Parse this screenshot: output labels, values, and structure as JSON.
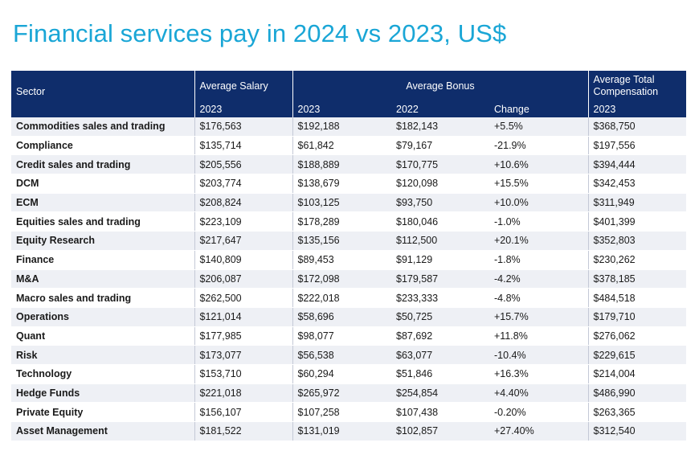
{
  "title": "Financial services pay in 2024 vs 2023, US$",
  "header": {
    "sector": "Sector",
    "avg_salary": "Average Salary",
    "avg_bonus": "Average Bonus",
    "avg_total": "Average Total Compensation",
    "year_salary": "2023",
    "year_bonus_2023": "2023",
    "year_bonus_2022": "2022",
    "change": "Change",
    "year_total": "2023"
  },
  "rows": [
    {
      "sector": "Commodities sales and trading",
      "salary": "$176,563",
      "bonus_2023": "$192,188",
      "bonus_2022": "$182,143",
      "change": "+5.5%",
      "total": "$368,750"
    },
    {
      "sector": "Compliance",
      "salary": "$135,714",
      "bonus_2023": "$61,842",
      "bonus_2022": "$79,167",
      "change": "-21.9%",
      "total": "$197,556"
    },
    {
      "sector": "Credit sales and trading",
      "salary": "$205,556",
      "bonus_2023": "$188,889",
      "bonus_2022": "$170,775",
      "change": "+10.6%",
      "total": "$394,444"
    },
    {
      "sector": "DCM",
      "salary": "$203,774",
      "bonus_2023": "$138,679",
      "bonus_2022": "$120,098",
      "change": "+15.5%",
      "total": "$342,453"
    },
    {
      "sector": "ECM",
      "salary": "$208,824",
      "bonus_2023": "$103,125",
      "bonus_2022": "$93,750",
      "change": "+10.0%",
      "total": "$311,949"
    },
    {
      "sector": "Equities sales and trading",
      "salary": "$223,109",
      "bonus_2023": "$178,289",
      "bonus_2022": "$180,046",
      "change": "-1.0%",
      "total": "$401,399"
    },
    {
      "sector": "Equity Research",
      "salary": "$217,647",
      "bonus_2023": "$135,156",
      "bonus_2022": "$112,500",
      "change": "+20.1%",
      "total": "$352,803"
    },
    {
      "sector": "Finance",
      "salary": "$140,809",
      "bonus_2023": "$89,453",
      "bonus_2022": "$91,129",
      "change": "-1.8%",
      "total": "$230,262"
    },
    {
      "sector": "M&A",
      "salary": "$206,087",
      "bonus_2023": "$172,098",
      "bonus_2022": "$179,587",
      "change": "-4.2%",
      "total": "$378,185"
    },
    {
      "sector": "Macro sales and trading",
      "salary": "$262,500",
      "bonus_2023": "$222,018",
      "bonus_2022": "$233,333",
      "change": "-4.8%",
      "total": "$484,518"
    },
    {
      "sector": "Operations",
      "salary": "$121,014",
      "bonus_2023": "$58,696",
      "bonus_2022": "$50,725",
      "change": "+15.7%",
      "total": "$179,710"
    },
    {
      "sector": "Quant",
      "salary": "$177,985",
      "bonus_2023": "$98,077",
      "bonus_2022": "$87,692",
      "change": "+11.8%",
      "total": "$276,062"
    },
    {
      "sector": "Risk",
      "salary": "$173,077",
      "bonus_2023": "$56,538",
      "bonus_2022": "$63,077",
      "change": "-10.4%",
      "total": "$229,615"
    },
    {
      "sector": "Technology",
      "salary": "$153,710",
      "bonus_2023": "$60,294",
      "bonus_2022": "$51,846",
      "change": "+16.3%",
      "total": "$214,004"
    },
    {
      "sector": "Hedge Funds",
      "salary": "$221,018",
      "bonus_2023": "$265,972",
      "bonus_2022": "$254,854",
      "change": "+4.40%",
      "total": "$486,990"
    },
    {
      "sector": "Private Equity",
      "salary": "$156,107",
      "bonus_2023": "$107,258",
      "bonus_2022": "$107,438",
      "change": "-0.20%",
      "total": "$263,365"
    },
    {
      "sector": "Asset Management",
      "salary": "$181,522",
      "bonus_2023": "$131,019",
      "bonus_2022": "$102,857",
      "change": "+27.40%",
      "total": "$312,540"
    }
  ],
  "colors": {
    "title": "#1aa6d6",
    "header_bg": "#0f2d6b",
    "row_alt": "#eef0f5"
  }
}
